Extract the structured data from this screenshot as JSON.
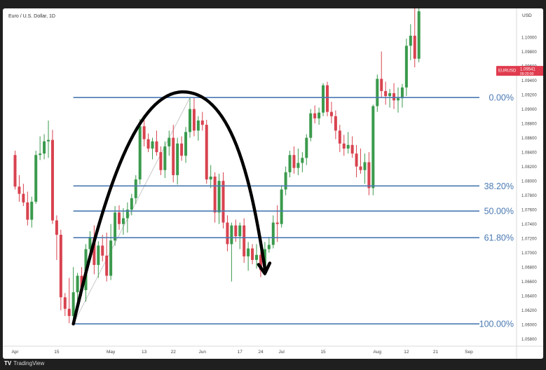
{
  "header": {
    "symbol": "Euro / U.S. Dollar, 1D"
  },
  "footer": {
    "brand": "TradingView"
  },
  "price_tag": {
    "symbol": "EURUSD",
    "price": "1.09541",
    "countdown": "09:20:00",
    "color": "#e03b4e"
  },
  "colors": {
    "up": "#3a9a4c",
    "down": "#d8434f",
    "fib": "#4a79b2",
    "arc": "#000000"
  },
  "chart_data": {
    "type": "candlestick",
    "currency": "USD",
    "ylim": [
      1.057,
      1.104
    ],
    "y_ticks": [
      "1.10000",
      "1.09800",
      "1.09600",
      "1.09400",
      "1.09200",
      "1.09000",
      "1.08800",
      "1.08600",
      "1.08400",
      "1.08200",
      "1.08000",
      "1.07800",
      "1.07600",
      "1.07400",
      "1.07200",
      "1.07000",
      "1.06800",
      "1.06600",
      "1.06400",
      "1.06200",
      "1.06000",
      "1.05800"
    ],
    "x_ticks": [
      {
        "label": "Apr",
        "i": 0
      },
      {
        "label": "15",
        "i": 10
      },
      {
        "label": "May",
        "i": 23
      },
      {
        "label": "13",
        "i": 31
      },
      {
        "label": "22",
        "i": 38
      },
      {
        "label": "Jun",
        "i": 45
      },
      {
        "label": "17",
        "i": 54
      },
      {
        "label": "24",
        "i": 59
      },
      {
        "label": "Jul",
        "i": 64
      },
      {
        "label": "15",
        "i": 74
      },
      {
        "label": "Aug",
        "i": 87
      },
      {
        "label": "12",
        "i": 94
      },
      {
        "label": "21",
        "i": 101
      },
      {
        "label": "Sep",
        "i": 109
      }
    ],
    "fib_levels": [
      {
        "label": "0.00%",
        "price": 1.0916
      },
      {
        "label": "38.20%",
        "price": 1.0793
      },
      {
        "label": "50.00%",
        "price": 1.0758
      },
      {
        "label": "61.80%",
        "price": 1.0721
      },
      {
        "label": "100.00%",
        "price": 1.0601
      }
    ],
    "fib_start_index": 14,
    "arc": {
      "start": {
        "i": 14,
        "price": 1.0601
      },
      "peak": {
        "i": 40,
        "price": 1.0918
      },
      "end": {
        "i": 60,
        "price": 1.067
      }
    },
    "candles": [
      {
        "o": 1.0836,
        "h": 1.0842,
        "l": 1.0788,
        "c": 1.0792
      },
      {
        "o": 1.0792,
        "h": 1.0808,
        "l": 1.0771,
        "c": 1.0782
      },
      {
        "o": 1.0782,
        "h": 1.0796,
        "l": 1.0765,
        "c": 1.077
      },
      {
        "o": 1.077,
        "h": 1.0785,
        "l": 1.0738,
        "c": 1.0746
      },
      {
        "o": 1.0746,
        "h": 1.0778,
        "l": 1.0735,
        "c": 1.0771
      },
      {
        "o": 1.0771,
        "h": 1.0842,
        "l": 1.0768,
        "c": 1.0836
      },
      {
        "o": 1.0836,
        "h": 1.0862,
        "l": 1.0829,
        "c": 1.0838
      },
      {
        "o": 1.0838,
        "h": 1.0865,
        "l": 1.083,
        "c": 1.0855
      },
      {
        "o": 1.0855,
        "h": 1.0884,
        "l": 1.0832,
        "c": 1.0857
      },
      {
        "o": 1.0857,
        "h": 1.0871,
        "l": 1.074,
        "c": 1.0745
      },
      {
        "o": 1.0745,
        "h": 1.0752,
        "l": 1.069,
        "c": 1.0725
      },
      {
        "o": 1.0725,
        "h": 1.0732,
        "l": 1.062,
        "c": 1.0638
      },
      {
        "o": 1.0638,
        "h": 1.0644,
        "l": 1.0612,
        "c": 1.0622
      },
      {
        "o": 1.0622,
        "h": 1.0665,
        "l": 1.0602,
        "c": 1.0612
      },
      {
        "o": 1.0612,
        "h": 1.068,
        "l": 1.0601,
        "c": 1.0645
      },
      {
        "o": 1.0645,
        "h": 1.0672,
        "l": 1.0622,
        "c": 1.0668
      },
      {
        "o": 1.0668,
        "h": 1.068,
        "l": 1.064,
        "c": 1.0648
      },
      {
        "o": 1.0648,
        "h": 1.0712,
        "l": 1.0632,
        "c": 1.0705
      },
      {
        "o": 1.0705,
        "h": 1.073,
        "l": 1.0695,
        "c": 1.0722
      },
      {
        "o": 1.0722,
        "h": 1.0738,
        "l": 1.067,
        "c": 1.0683
      },
      {
        "o": 1.0683,
        "h": 1.0716,
        "l": 1.0665,
        "c": 1.071
      },
      {
        "o": 1.071,
        "h": 1.0725,
        "l": 1.0688,
        "c": 1.0696
      },
      {
        "o": 1.0696,
        "h": 1.0728,
        "l": 1.066,
        "c": 1.0668
      },
      {
        "o": 1.0668,
        "h": 1.074,
        "l": 1.0662,
        "c": 1.0717
      },
      {
        "o": 1.0717,
        "h": 1.0765,
        "l": 1.071,
        "c": 1.0756
      },
      {
        "o": 1.0756,
        "h": 1.0766,
        "l": 1.0732,
        "c": 1.074
      },
      {
        "o": 1.074,
        "h": 1.0762,
        "l": 1.0725,
        "c": 1.0748
      },
      {
        "o": 1.0748,
        "h": 1.077,
        "l": 1.0728,
        "c": 1.076
      },
      {
        "o": 1.076,
        "h": 1.0782,
        "l": 1.0752,
        "c": 1.0776
      },
      {
        "o": 1.0776,
        "h": 1.0808,
        "l": 1.0768,
        "c": 1.0802
      },
      {
        "o": 1.0802,
        "h": 1.0886,
        "l": 1.0795,
        "c": 1.0876
      },
      {
        "o": 1.0876,
        "h": 1.0892,
        "l": 1.0848,
        "c": 1.0858
      },
      {
        "o": 1.0858,
        "h": 1.0866,
        "l": 1.084,
        "c": 1.0845
      },
      {
        "o": 1.0845,
        "h": 1.086,
        "l": 1.083,
        "c": 1.0855
      },
      {
        "o": 1.0855,
        "h": 1.087,
        "l": 1.0835,
        "c": 1.084
      },
      {
        "o": 1.084,
        "h": 1.0848,
        "l": 1.0808,
        "c": 1.0815
      },
      {
        "o": 1.0815,
        "h": 1.0855,
        "l": 1.0804,
        "c": 1.0848
      },
      {
        "o": 1.0848,
        "h": 1.087,
        "l": 1.0835,
        "c": 1.086
      },
      {
        "o": 1.086,
        "h": 1.0878,
        "l": 1.0798,
        "c": 1.0808
      },
      {
        "o": 1.0808,
        "h": 1.086,
        "l": 1.0795,
        "c": 1.0852
      },
      {
        "o": 1.0852,
        "h": 1.0862,
        "l": 1.0828,
        "c": 1.0835
      },
      {
        "o": 1.0835,
        "h": 1.0875,
        "l": 1.0825,
        "c": 1.0868
      },
      {
        "o": 1.0868,
        "h": 1.0916,
        "l": 1.086,
        "c": 1.09
      },
      {
        "o": 1.09,
        "h": 1.0915,
        "l": 1.0862,
        "c": 1.087
      },
      {
        "o": 1.087,
        "h": 1.089,
        "l": 1.0856,
        "c": 1.0884
      },
      {
        "o": 1.0884,
        "h": 1.0896,
        "l": 1.087,
        "c": 1.0878
      },
      {
        "o": 1.0878,
        "h": 1.0885,
        "l": 1.0796,
        "c": 1.0802
      },
      {
        "o": 1.0802,
        "h": 1.0822,
        "l": 1.079,
        "c": 1.0806
      },
      {
        "o": 1.0806,
        "h": 1.0812,
        "l": 1.0742,
        "c": 1.0756
      },
      {
        "o": 1.0756,
        "h": 1.081,
        "l": 1.074,
        "c": 1.08
      },
      {
        "o": 1.08,
        "h": 1.0812,
        "l": 1.0734,
        "c": 1.0742
      },
      {
        "o": 1.0742,
        "h": 1.0752,
        "l": 1.0702,
        "c": 1.0712
      },
      {
        "o": 1.0712,
        "h": 1.0742,
        "l": 1.066,
        "c": 1.0738
      },
      {
        "o": 1.0738,
        "h": 1.0746,
        "l": 1.0715,
        "c": 1.0723
      },
      {
        "o": 1.0723,
        "h": 1.0742,
        "l": 1.0705,
        "c": 1.0738
      },
      {
        "o": 1.0738,
        "h": 1.0748,
        "l": 1.0686,
        "c": 1.0695
      },
      {
        "o": 1.0695,
        "h": 1.0715,
        "l": 1.0675,
        "c": 1.0706
      },
      {
        "o": 1.0706,
        "h": 1.0712,
        "l": 1.0684,
        "c": 1.069
      },
      {
        "o": 1.069,
        "h": 1.0712,
        "l": 1.0678,
        "c": 1.0697
      },
      {
        "o": 1.0697,
        "h": 1.0705,
        "l": 1.0666,
        "c": 1.0676
      },
      {
        "o": 1.0676,
        "h": 1.0715,
        "l": 1.0668,
        "c": 1.0705
      },
      {
        "o": 1.0705,
        "h": 1.0722,
        "l": 1.07,
        "c": 1.0711
      },
      {
        "o": 1.0711,
        "h": 1.0752,
        "l": 1.0706,
        "c": 1.0742
      },
      {
        "o": 1.0742,
        "h": 1.0766,
        "l": 1.0715,
        "c": 1.074
      },
      {
        "o": 1.074,
        "h": 1.0794,
        "l": 1.0735,
        "c": 1.0788
      },
      {
        "o": 1.0788,
        "h": 1.082,
        "l": 1.078,
        "c": 1.0812
      },
      {
        "o": 1.0812,
        "h": 1.0842,
        "l": 1.0805,
        "c": 1.0836
      },
      {
        "o": 1.0836,
        "h": 1.0848,
        "l": 1.081,
        "c": 1.0818
      },
      {
        "o": 1.0818,
        "h": 1.0845,
        "l": 1.0808,
        "c": 1.0825
      },
      {
        "o": 1.0825,
        "h": 1.084,
        "l": 1.0812,
        "c": 1.0832
      },
      {
        "o": 1.0832,
        "h": 1.0865,
        "l": 1.0822,
        "c": 1.086
      },
      {
        "o": 1.086,
        "h": 1.09,
        "l": 1.0855,
        "c": 1.0894
      },
      {
        "o": 1.0894,
        "h": 1.0905,
        "l": 1.088,
        "c": 1.0887
      },
      {
        "o": 1.0887,
        "h": 1.0902,
        "l": 1.0878,
        "c": 1.0895
      },
      {
        "o": 1.0895,
        "h": 1.0936,
        "l": 1.089,
        "c": 1.0933
      },
      {
        "o": 1.0933,
        "h": 1.0938,
        "l": 1.089,
        "c": 1.0896
      },
      {
        "o": 1.0896,
        "h": 1.091,
        "l": 1.088,
        "c": 1.089
      },
      {
        "o": 1.089,
        "h": 1.0898,
        "l": 1.0858,
        "c": 1.087
      },
      {
        "o": 1.087,
        "h": 1.0878,
        "l": 1.084,
        "c": 1.0852
      },
      {
        "o": 1.0852,
        "h": 1.0864,
        "l": 1.0835,
        "c": 1.0845
      },
      {
        "o": 1.0845,
        "h": 1.0868,
        "l": 1.0838,
        "c": 1.085
      },
      {
        "o": 1.085,
        "h": 1.0862,
        "l": 1.0832,
        "c": 1.0838
      },
      {
        "o": 1.0838,
        "h": 1.085,
        "l": 1.0805,
        "c": 1.082
      },
      {
        "o": 1.082,
        "h": 1.0845,
        "l": 1.081,
        "c": 1.0815
      },
      {
        "o": 1.0815,
        "h": 1.0838,
        "l": 1.0796,
        "c": 1.0826
      },
      {
        "o": 1.0826,
        "h": 1.084,
        "l": 1.078,
        "c": 1.079
      },
      {
        "o": 1.079,
        "h": 1.0906,
        "l": 1.078,
        "c": 1.0904
      },
      {
        "o": 1.0904,
        "h": 1.0948,
        "l": 1.0896,
        "c": 1.0942
      },
      {
        "o": 1.0942,
        "h": 1.098,
        "l": 1.0916,
        "c": 1.0925
      },
      {
        "o": 1.0925,
        "h": 1.0938,
        "l": 1.0906,
        "c": 1.0918
      },
      {
        "o": 1.0918,
        "h": 1.0928,
        "l": 1.0902,
        "c": 1.0922
      },
      {
        "o": 1.0922,
        "h": 1.0936,
        "l": 1.09,
        "c": 1.0912
      },
      {
        "o": 1.0912,
        "h": 1.093,
        "l": 1.0895,
        "c": 1.0915
      },
      {
        "o": 1.0915,
        "h": 1.0935,
        "l": 1.0902,
        "c": 1.093
      },
      {
        "o": 1.093,
        "h": 1.0998,
        "l": 1.0918,
        "c": 1.0988
      },
      {
        "o": 1.0988,
        "h": 1.1018,
        "l": 1.0968,
        "c": 1.1002
      },
      {
        "o": 1.1002,
        "h": 1.104,
        "l": 1.0958,
        "c": 1.097
      },
      {
        "o": 1.097,
        "h": 1.104,
        "l": 1.0965,
        "c": 1.1036
      }
    ]
  }
}
